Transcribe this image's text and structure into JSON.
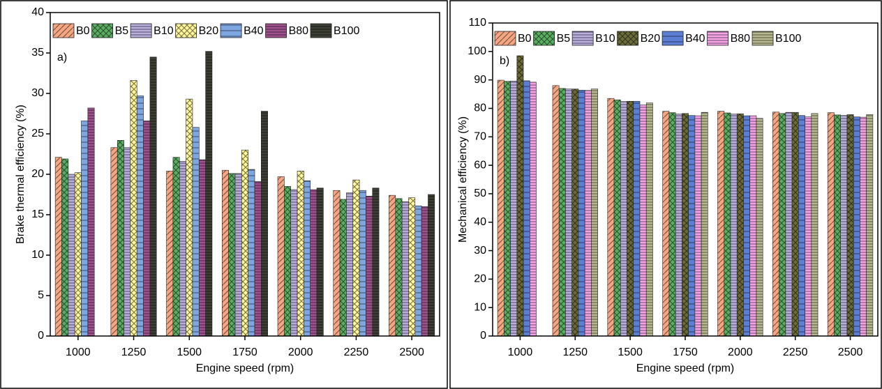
{
  "chart_data": [
    {
      "type": "bar",
      "annotation": "a)",
      "x_label": "Engine speed (rpm)",
      "y_label": "Brake thermal efficiency (%)",
      "categories": [
        "1000",
        "1250",
        "1500",
        "1750",
        "2000",
        "2250",
        "2500"
      ],
      "ylim": [
        0,
        40
      ],
      "yticks": [
        0,
        5,
        10,
        15,
        20,
        25,
        30,
        35,
        40
      ],
      "series": [
        {
          "name": "B0",
          "color": "#f4a582",
          "values": [
            22.1,
            23.3,
            20.4,
            20.5,
            19.7,
            18.0,
            17.4
          ]
        },
        {
          "name": "B5",
          "color": "#5aae61",
          "values": [
            21.9,
            24.2,
            22.1,
            20.1,
            18.5,
            16.9,
            17.0
          ]
        },
        {
          "name": "B10",
          "color": "#b9aedc",
          "values": [
            20.0,
            23.3,
            21.6,
            20.1,
            18.1,
            17.7,
            16.6
          ]
        },
        {
          "name": "B20",
          "color": "#fff799",
          "values": [
            20.2,
            31.6,
            29.3,
            23.0,
            20.4,
            19.3,
            17.1
          ]
        },
        {
          "name": "B40",
          "color": "#7ea6e0",
          "values": [
            26.6,
            29.7,
            25.8,
            20.6,
            19.2,
            18.0,
            16.1
          ]
        },
        {
          "name": "B80",
          "color": "#a0528f",
          "values": [
            28.2,
            26.6,
            21.8,
            19.1,
            18.1,
            17.3,
            16.0
          ]
        },
        {
          "name": "B100",
          "color": "#3d4035",
          "values": [
            null,
            34.5,
            35.2,
            27.8,
            18.3,
            18.3,
            17.5
          ]
        }
      ]
    },
    {
      "type": "bar",
      "annotation": "b)",
      "x_label": "Engine speed (rpm)",
      "y_label": "Mechanical efficiency (%)",
      "categories": [
        "1000",
        "1250",
        "1500",
        "1750",
        "2000",
        "2250",
        "2500"
      ],
      "ylim": [
        0,
        110
      ],
      "yticks": [
        0,
        10,
        20,
        30,
        40,
        50,
        60,
        70,
        80,
        90,
        100,
        110
      ],
      "series": [
        {
          "name": "B0",
          "color": "#f4a582",
          "values": [
            89.9,
            88.0,
            83.5,
            79.0,
            79.0,
            78.7,
            78.5
          ]
        },
        {
          "name": "B5",
          "color": "#5aae61",
          "values": [
            89.5,
            87.0,
            83.0,
            78.5,
            78.4,
            78.2,
            77.7
          ]
        },
        {
          "name": "B10",
          "color": "#b9aedc",
          "values": [
            89.6,
            86.8,
            82.4,
            78.0,
            78.0,
            78.6,
            77.5
          ]
        },
        {
          "name": "B20",
          "color": "#6b6b3a",
          "values": [
            98.5,
            86.8,
            82.5,
            78.2,
            78.1,
            78.6,
            77.8
          ]
        },
        {
          "name": "B40",
          "color": "#5b7fd4",
          "values": [
            89.7,
            86.4,
            82.5,
            77.5,
            77.4,
            77.5,
            77.0
          ]
        },
        {
          "name": "B80",
          "color": "#f5a3e6",
          "values": [
            89.2,
            86.3,
            81.2,
            77.4,
            77.4,
            77.0,
            76.9
          ]
        },
        {
          "name": "B100",
          "color": "#b8b890",
          "values": [
            null,
            86.8,
            81.9,
            78.6,
            76.5,
            78.2,
            77.8
          ]
        }
      ]
    }
  ]
}
